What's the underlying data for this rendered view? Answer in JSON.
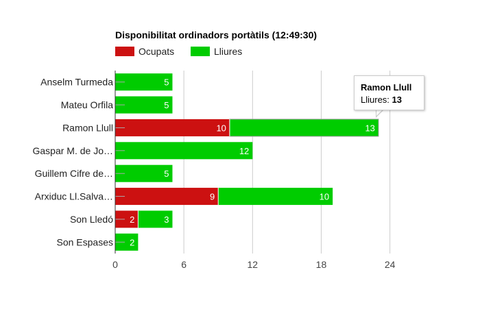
{
  "chart_data": {
    "type": "bar",
    "orientation": "horizontal",
    "stacked": true,
    "title": "Disponibilitat ordinadors portàtils (12:49:30)",
    "categories": [
      "Anselm Turmeda",
      "Mateu Orfila",
      "Ramon Llull",
      "Gaspar M. de Jo…",
      "Guillem Cifre de…",
      "Arxiduc Ll.Salva…",
      "Son Lledó",
      "Son Espases"
    ],
    "series": [
      {
        "name": "Ocupats",
        "color": "#cc1111",
        "values": [
          0,
          0,
          10,
          0,
          0,
          9,
          2,
          0
        ]
      },
      {
        "name": "Lliures",
        "color": "#00cc00",
        "values": [
          5,
          5,
          13,
          12,
          5,
          10,
          3,
          2
        ]
      }
    ],
    "xlim": [
      0,
      26
    ],
    "xticks": [
      0,
      6,
      12,
      18,
      24
    ],
    "legend_position": "top-left",
    "grid": true,
    "tooltip": {
      "title": "Ramon Llull",
      "label": "Lliures:",
      "value": "13"
    }
  }
}
